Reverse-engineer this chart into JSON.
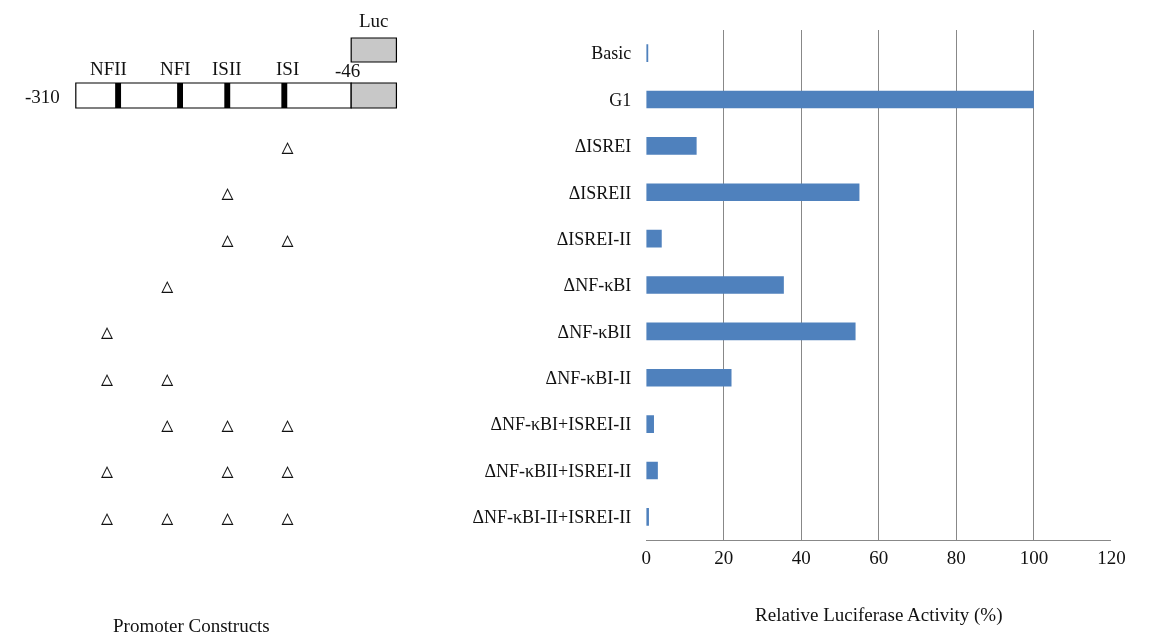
{
  "chart_data": {
    "type": "bar",
    "orientation": "horizontal",
    "categories": [
      "Basic",
      "G1",
      "ΔISREI",
      "ΔISREII",
      "ΔISREI-II",
      "ΔNF-κBI",
      "ΔNF-κBII",
      "ΔNF-κBI-II",
      "ΔNF-κBI+ISREI-II",
      "ΔNF-κBII+ISREI-II",
      "ΔNF-κBI-II+ISREI-II"
    ],
    "values": [
      0.5,
      100,
      13,
      55,
      4,
      35.5,
      54,
      22,
      2,
      3,
      0.7
    ],
    "color": "#4f81bd",
    "xlabel": "Relative Luciferase Activity (%)",
    "xlim": [
      0,
      120
    ],
    "xticks": [
      0,
      20,
      40,
      60,
      80,
      100,
      120
    ],
    "grid": "x",
    "annotations": [
      "Promoter Constructs",
      "Luc",
      "NFII",
      "NFI",
      "ISII",
      "ISI",
      "-46",
      "-310",
      "               △",
      "          △",
      "          △    △",
      "     △",
      "△",
      "△    △",
      "     △    △    △",
      "△         △    △",
      "△    △    △    △"
    ]
  }
}
